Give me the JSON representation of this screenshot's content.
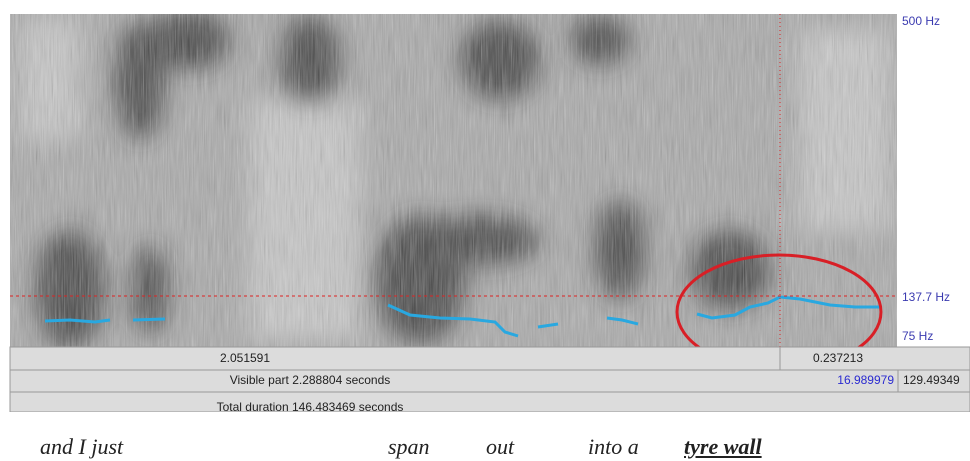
{
  "frequency_axis": {
    "top": "500 Hz",
    "cursor": "137.7 Hz",
    "bottom": "75 Hz"
  },
  "selection_bar": {
    "left": "2.051591",
    "right": "0.237213"
  },
  "visible_bar": {
    "label": "Visible part 2.288804 seconds",
    "window_start": "16.989979",
    "window_end": "129.49349"
  },
  "total_bar": {
    "label": "Total duration 146.483469 seconds"
  },
  "transcript": {
    "words": [
      "and I just",
      "span",
      "out",
      "into a"
    ],
    "highlight": "tyre wall"
  }
}
